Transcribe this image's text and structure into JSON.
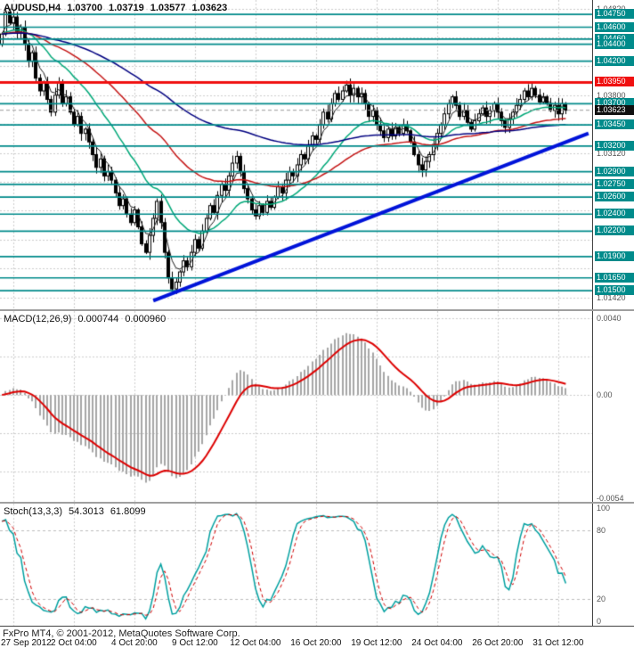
{
  "header": {
    "symbol": "AUDUSD,H4",
    "open": "1.03700",
    "high": "1.03719",
    "low": "1.03577",
    "close": "1.03623"
  },
  "macd_header": {
    "name": "MACD(12,26,9)",
    "value": "0.000744",
    "signal": "0.000960"
  },
  "stoch_header": {
    "name": "Stoch(13,3,3)",
    "value": "54.3013",
    "signal": "61.8099"
  },
  "footer": {
    "copyright": "FxPro MT4, © 2001-2012, MetaQuotes Software Corp."
  },
  "colors": {
    "background": "#ffffff",
    "grid": "#cdcdcd",
    "candle_bull": "#ffffff",
    "candle_bear": "#000000",
    "candle_outline": "#000000",
    "level_teal": "#008b8b",
    "level_red": "#f01010",
    "trendline_blue": "#0013d9",
    "ma_fast_black": "#1a1a1a",
    "ma_green": "#00a878",
    "ma_red": "#c41414",
    "ma_navy": "#000080",
    "macd_hist": "#a6a6a6",
    "macd_signal": "#dd0000",
    "stoch_main": "#00a0a0",
    "stoch_signal": "#d00000",
    "axis_gray_text": "#555555",
    "current_badge": "#101010",
    "current_price_line": "#9a9a9a"
  },
  "chart_data": {
    "type": "candlestick",
    "symbol": "AUDUSD",
    "timeframe": "H4",
    "title": "AUDUSD,H4",
    "x_ticks": {
      "indices": [
        3,
        19,
        35,
        51,
        67,
        83,
        99,
        115,
        131,
        147
      ],
      "labels": [
        "27 Sep 2012",
        "2 Oct 04:00",
        "4 Oct 20:00",
        "9 Oct 12:00",
        "12 Oct 04:00",
        "16 Oct 20:00",
        "19 Oct 12:00",
        "24 Oct 04:00",
        "26 Oct 20:00",
        "31 Oct 12:00"
      ]
    },
    "candles": {
      "first_open": 1.044,
      "closes": [
        1.0452,
        1.0478,
        1.0465,
        1.0472,
        1.0455,
        1.046,
        1.044,
        1.042,
        1.043,
        1.04,
        1.0385,
        1.0395,
        1.0375,
        1.036,
        1.038,
        1.0395,
        1.037,
        1.0378,
        1.036,
        1.0345,
        1.0355,
        1.0335,
        1.034,
        1.0325,
        1.031,
        1.0295,
        1.0305,
        1.0285,
        1.029,
        1.028,
        1.0265,
        1.025,
        1.0258,
        1.024,
        1.023,
        1.0245,
        1.0225,
        1.0205,
        1.0195,
        1.0215,
        1.0235,
        1.0255,
        1.023,
        1.0195,
        1.0165,
        1.0152,
        1.016,
        1.0172,
        1.0185,
        1.0178,
        1.0195,
        1.021,
        1.02,
        1.022,
        1.0235,
        1.025,
        1.0242,
        1.0262,
        1.0275,
        1.0268,
        1.0285,
        1.03,
        1.0308,
        1.029,
        1.027,
        1.0258,
        1.0245,
        1.0238,
        1.025,
        1.0242,
        1.0255,
        1.0248,
        1.026,
        1.0272,
        1.0265,
        1.028,
        1.029,
        1.0285,
        1.0298,
        1.031,
        1.0305,
        1.032,
        1.0332,
        1.0328,
        1.0345,
        1.036,
        1.0352,
        1.037,
        1.0382,
        1.0375,
        1.0385,
        1.0392,
        1.038,
        1.0388,
        1.0378,
        1.0382,
        1.037,
        1.0355,
        1.0362,
        1.0345,
        1.0338,
        1.033,
        1.034,
        1.0332,
        1.0342,
        1.0335,
        1.0345,
        1.0338,
        1.0325,
        1.031,
        1.0298,
        1.0292,
        1.0302,
        1.031,
        1.0322,
        1.0335,
        1.0345,
        1.0358,
        1.037,
        1.0378,
        1.0368,
        1.0355,
        1.0362,
        1.0348,
        1.034,
        1.035,
        1.0358,
        1.0365,
        1.0355,
        1.0362,
        1.037,
        1.036,
        1.035,
        1.0342,
        1.0352,
        1.036,
        1.0368,
        1.0375,
        1.0385,
        1.0378,
        1.0388,
        1.038,
        1.0372,
        1.0378,
        1.037,
        1.0362,
        1.0368,
        1.0358,
        1.037,
        1.0362
      ],
      "overrides": {
        "1": {
          "h": 1.0482
        },
        "45": {
          "l": 1.0149
        },
        "91": {
          "h": 1.0397
        },
        "149": {
          "o": 1.037,
          "h": 1.03719,
          "l": 1.03577,
          "c": 1.03623
        }
      }
    },
    "main": {
      "ylim": [
        1.0128,
        1.0492
      ],
      "grid": {
        "start": 1.0482,
        "step": 0.0034,
        "count": 11
      },
      "gray_axis_labels": [
        1.0482,
        1.038,
        1.0312,
        1.0142
      ],
      "teal_levels": [
        1.0475,
        1.046,
        1.0446,
        1.044,
        1.042,
        1.037,
        1.0345,
        1.032,
        1.029,
        1.0275,
        1.026,
        1.024,
        1.022,
        1.019,
        1.0165,
        1.015
      ],
      "red_level": 1.0395,
      "current_price": 1.03623,
      "trendline": {
        "i1": 40,
        "p1": 1.0138,
        "i2": 155,
        "p2": 1.0335
      },
      "ma_lines": [
        {
          "period": 5,
          "color_key": "ma_fast_black",
          "width": 1
        },
        {
          "period": 22,
          "color_key": "ma_green",
          "width": 1.5
        },
        {
          "period": 55,
          "color_key": "ma_red",
          "width": 1.5
        },
        {
          "period": 120,
          "color_key": "ma_navy",
          "width": 1.5
        }
      ]
    },
    "macd": {
      "fast": 12,
      "slow": 26,
      "signal": 9,
      "ylim": [
        -0.0054,
        0.0042
      ],
      "grid_values": [
        0.004,
        0.002,
        0,
        -0.002,
        -0.004
      ],
      "axis_labels": [
        {
          "text": "0.0040",
          "value": 0.004
        },
        {
          "text": "0.00",
          "value": 0
        },
        {
          "text": "-0.0054",
          "value": -0.0054
        }
      ]
    },
    "stoch": {
      "period": 13,
      "slowing": 3,
      "signal": 3,
      "ylim": [
        0,
        100
      ],
      "levels": [
        80,
        20
      ],
      "axis_labels": [
        {
          "text": "100",
          "value": 100
        },
        {
          "text": "80",
          "value": 80
        },
        {
          "text": "20",
          "value": 20
        },
        {
          "text": "0",
          "value": 0
        }
      ]
    }
  }
}
